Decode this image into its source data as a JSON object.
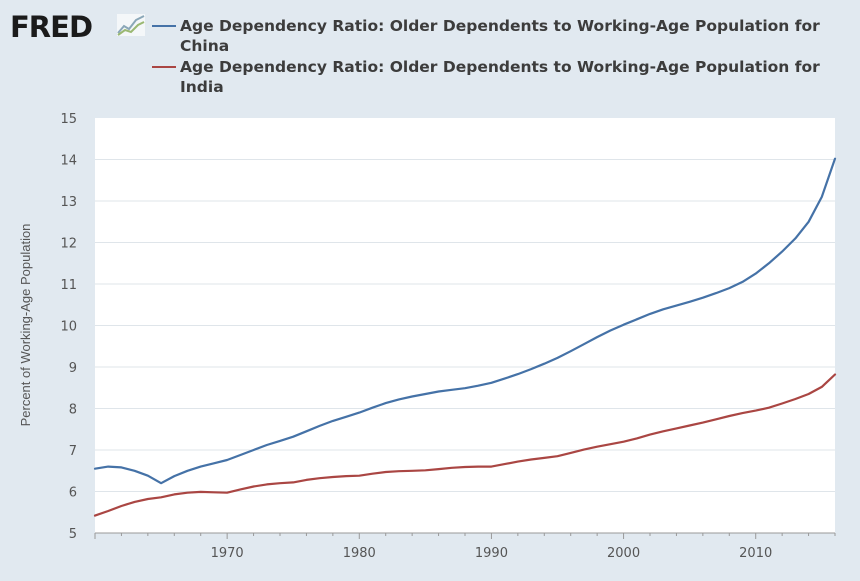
{
  "header": {
    "logo_text": "FRED",
    "logo_icon": "line-chart-icon"
  },
  "colors": {
    "background": "#e1e9f0",
    "plot_background": "#ffffff",
    "china": "#4572a7",
    "india": "#aa4643",
    "grid": "#dfe5ea"
  },
  "chart_data": {
    "type": "line",
    "title": "",
    "xlabel": "",
    "ylabel": "Percent of Working-Age Population",
    "xlim": [
      1960,
      2016
    ],
    "ylim": [
      5,
      15
    ],
    "xticks": [
      1970,
      1980,
      1990,
      2000,
      2010
    ],
    "yticks": [
      5,
      6,
      7,
      8,
      9,
      10,
      11,
      12,
      13,
      14,
      15
    ],
    "grid": true,
    "legend": "top",
    "x": [
      1960,
      1961,
      1962,
      1963,
      1964,
      1965,
      1966,
      1967,
      1968,
      1969,
      1970,
      1971,
      1972,
      1973,
      1974,
      1975,
      1976,
      1977,
      1978,
      1979,
      1980,
      1981,
      1982,
      1983,
      1984,
      1985,
      1986,
      1987,
      1988,
      1989,
      1990,
      1991,
      1992,
      1993,
      1994,
      1995,
      1996,
      1997,
      1998,
      1999,
      2000,
      2001,
      2002,
      2003,
      2004,
      2005,
      2006,
      2007,
      2008,
      2009,
      2010,
      2011,
      2012,
      2013,
      2014,
      2015,
      2016
    ],
    "series": [
      {
        "name": "Age Dependency Ratio: Older Dependents to Working-Age Population for China",
        "color": "#4572a7",
        "values": [
          6.55,
          6.6,
          6.58,
          6.5,
          6.38,
          6.2,
          6.37,
          6.5,
          6.6,
          6.68,
          6.76,
          6.88,
          7.0,
          7.12,
          7.22,
          7.32,
          7.45,
          7.58,
          7.7,
          7.8,
          7.9,
          8.02,
          8.13,
          8.22,
          8.29,
          8.35,
          8.41,
          8.45,
          8.49,
          8.55,
          8.62,
          8.72,
          8.83,
          8.95,
          9.08,
          9.22,
          9.38,
          9.55,
          9.72,
          9.88,
          10.02,
          10.15,
          10.28,
          10.39,
          10.48,
          10.57,
          10.67,
          10.78,
          10.9,
          11.05,
          11.25,
          11.5,
          11.78,
          12.1,
          12.5,
          13.1,
          14.02
        ]
      },
      {
        "name": "Age Dependency Ratio: Older Dependents to Working-Age Population for India",
        "color": "#aa4643",
        "values": [
          5.42,
          5.53,
          5.65,
          5.75,
          5.82,
          5.86,
          5.93,
          5.97,
          5.99,
          5.98,
          5.97,
          6.05,
          6.12,
          6.17,
          6.2,
          6.22,
          6.28,
          6.32,
          6.35,
          6.37,
          6.38,
          6.43,
          6.47,
          6.49,
          6.5,
          6.51,
          6.54,
          6.57,
          6.59,
          6.6,
          6.6,
          6.66,
          6.72,
          6.77,
          6.81,
          6.85,
          6.93,
          7.01,
          7.08,
          7.14,
          7.2,
          7.28,
          7.37,
          7.45,
          7.52,
          7.59,
          7.66,
          7.74,
          7.82,
          7.89,
          7.95,
          8.02,
          8.12,
          8.23,
          8.35,
          8.52,
          8.82
        ]
      }
    ]
  }
}
